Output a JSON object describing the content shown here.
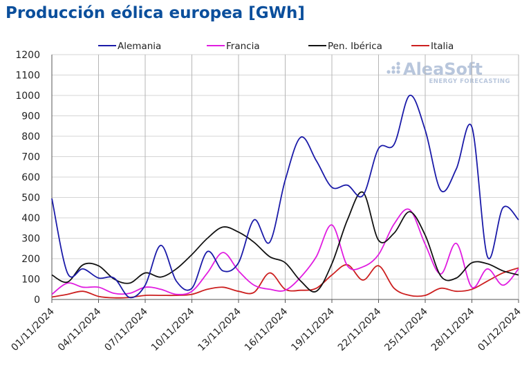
{
  "chart_data": {
    "type": "line",
    "title": "Producción eólica europea [GWh]",
    "ylim": [
      0,
      1200
    ],
    "yticks": [
      0,
      100,
      200,
      300,
      400,
      500,
      600,
      700,
      800,
      900,
      1000,
      1100,
      1200
    ],
    "xticks": [
      "01/11/2024",
      "04/11/2024",
      "07/11/2024",
      "10/11/2024",
      "13/11/2024",
      "16/11/2024",
      "19/11/2024",
      "22/11/2024",
      "25/11/2024",
      "28/11/2024",
      "01/12/2024"
    ],
    "x": [
      "01/11/2024",
      "02/11/2024",
      "03/11/2024",
      "04/11/2024",
      "05/11/2024",
      "06/11/2024",
      "07/11/2024",
      "08/11/2024",
      "09/11/2024",
      "10/11/2024",
      "11/11/2024",
      "12/11/2024",
      "13/11/2024",
      "14/11/2024",
      "15/11/2024",
      "16/11/2024",
      "17/11/2024",
      "18/11/2024",
      "19/11/2024",
      "20/11/2024",
      "21/11/2024",
      "22/11/2024",
      "23/11/2024",
      "24/11/2024",
      "25/11/2024",
      "26/11/2024",
      "27/11/2024",
      "28/11/2024",
      "29/11/2024",
      "30/11/2024",
      "01/12/2024"
    ],
    "grid": "vertical at x ticks, horizontal at y ticks",
    "legend_position": "top",
    "series": [
      {
        "name": "Alemania",
        "color": "#1a1aa8",
        "values": [
          495,
          130,
          150,
          105,
          105,
          10,
          70,
          265,
          90,
          55,
          235,
          140,
          180,
          390,
          280,
          585,
          795,
          680,
          550,
          560,
          510,
          740,
          760,
          1000,
          830,
          535,
          640,
          845,
          210,
          450,
          390
        ]
      },
      {
        "name": "Francia",
        "color": "#e01ce0",
        "values": [
          25,
          80,
          60,
          60,
          30,
          30,
          60,
          50,
          25,
          40,
          130,
          230,
          140,
          70,
          50,
          45,
          110,
          210,
          365,
          165,
          160,
          220,
          370,
          440,
          270,
          125,
          275,
          60,
          150,
          70,
          150
        ]
      },
      {
        "name": "Pen. Ibérica",
        "color": "#111111",
        "values": [
          120,
          85,
          170,
          165,
          100,
          80,
          130,
          110,
          150,
          220,
          300,
          355,
          330,
          280,
          210,
          180,
          90,
          40,
          175,
          390,
          525,
          290,
          325,
          430,
          315,
          115,
          105,
          180,
          175,
          140,
          120
        ]
      },
      {
        "name": "Italia",
        "color": "#cc1f1f",
        "values": [
          12,
          25,
          40,
          15,
          8,
          10,
          20,
          20,
          20,
          25,
          50,
          60,
          40,
          35,
          130,
          50,
          45,
          55,
          120,
          170,
          95,
          165,
          55,
          20,
          20,
          55,
          40,
          50,
          90,
          130,
          155
        ]
      }
    ]
  },
  "watermark": {
    "name": "AleaSoft",
    "subtitle": "ENERGY FORECASTING"
  }
}
